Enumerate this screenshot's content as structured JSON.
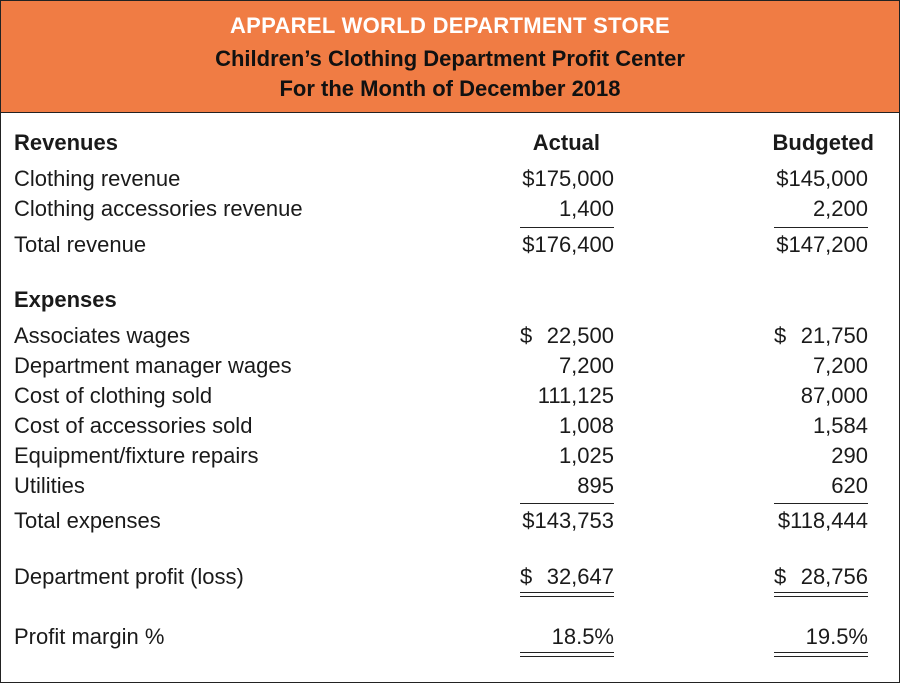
{
  "header": {
    "store": "APPAREL WORLD DEPARTMENT STORE",
    "subtitle": "Children’s Clothing Department Profit Center",
    "period": "For the Month of December 2018",
    "accent_color": "#f07c44"
  },
  "columns": {
    "actual": "Actual",
    "budgeted": "Budgeted"
  },
  "revenues": {
    "heading": "Revenues",
    "rows": [
      {
        "label": "Clothing revenue",
        "actual": "$175,000",
        "budgeted": "$145,000"
      },
      {
        "label": "Clothing accessories revenue",
        "actual": "1,400",
        "budgeted": "2,200"
      }
    ],
    "total": {
      "label": "Total revenue",
      "actual": "$176,400",
      "budgeted": "$147,200"
    }
  },
  "expenses": {
    "heading": "Expenses",
    "rows": [
      {
        "label": "Associates wages",
        "actual_sign": "$",
        "actual": "22,500",
        "budgeted_sign": "$",
        "budgeted": "21,750"
      },
      {
        "label": "Department manager wages",
        "actual": "7,200",
        "budgeted": "7,200"
      },
      {
        "label": "Cost of clothing sold",
        "actual": "111,125",
        "budgeted": "87,000"
      },
      {
        "label": "Cost of accessories sold",
        "actual": "1,008",
        "budgeted": "1,584"
      },
      {
        "label": "Equipment/fixture repairs",
        "actual": "1,025",
        "budgeted": "290"
      },
      {
        "label": "Utilities",
        "actual": "895",
        "budgeted": "620"
      }
    ],
    "total": {
      "label": "Total expenses",
      "actual": "$143,753",
      "budgeted": "$118,444"
    }
  },
  "profit": {
    "label": "Department profit (loss)",
    "actual_sign": "$",
    "actual": "32,647",
    "budgeted_sign": "$",
    "budgeted": "28,756"
  },
  "margin": {
    "label": "Profit margin %",
    "actual": "18.5%",
    "budgeted": "19.5%"
  }
}
